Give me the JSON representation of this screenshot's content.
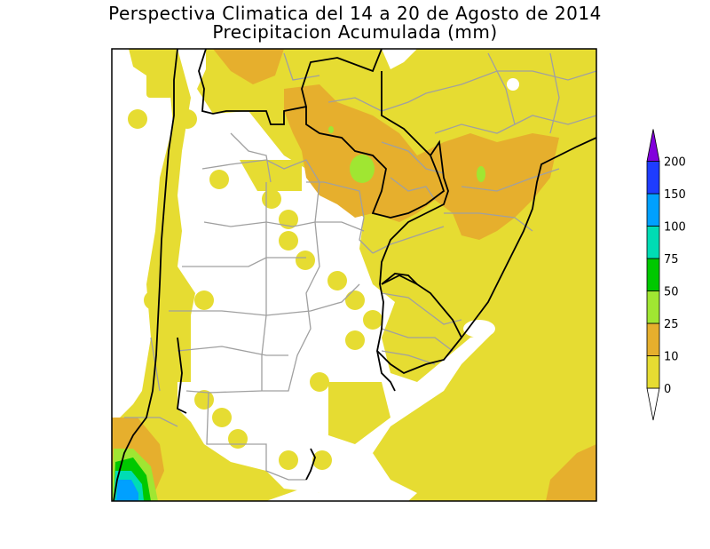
{
  "title": "Perspectiva Climatica del 14 a 20 de Agosto de 2014",
  "subtitle": "Precipitacion Acumulada (mm)",
  "legend": {
    "levels": [
      "0",
      "10",
      "25",
      "50",
      "75",
      "100",
      "150",
      "200"
    ],
    "colors": [
      "#e6dc32",
      "#e6af2d",
      "#a0e632",
      "#00c800",
      "#00dcb4",
      "#00a0ff",
      "#1e3cff",
      "#8200dc"
    ]
  }
}
